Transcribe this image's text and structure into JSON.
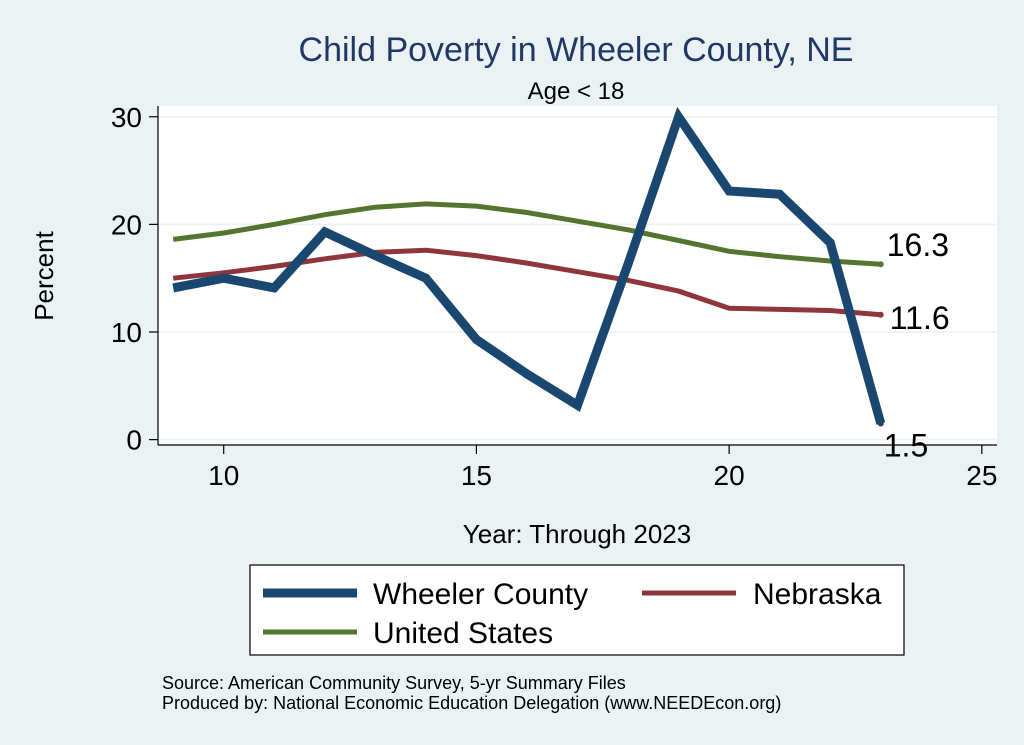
{
  "chart_data": {
    "type": "line",
    "title": "Child Poverty in Wheeler County, NE",
    "subtitle": "Age < 18",
    "xlabel": "Year: Through 2023",
    "ylabel": "Percent",
    "xlim": [
      8.7,
      25.3
    ],
    "ylim": [
      -0.5,
      31
    ],
    "xticks": [
      "10",
      "15",
      "20",
      "25"
    ],
    "yticks": [
      "0",
      "10",
      "20",
      "30"
    ],
    "grid": true,
    "series": [
      {
        "name": "Wheeler County",
        "color": "#1a476f",
        "x": [
          9,
          10,
          11,
          12,
          13,
          14,
          15,
          16,
          17,
          18,
          19,
          20,
          21,
          22,
          23
        ],
        "values": [
          14.1,
          15.0,
          14.1,
          19.3,
          17.1,
          15.0,
          9.3,
          6.1,
          3.2,
          16.3,
          30.0,
          23.1,
          22.8,
          18.3,
          1.5
        ]
      },
      {
        "name": "Nebraska",
        "color": "#90353b",
        "x": [
          9,
          10,
          11,
          12,
          13,
          14,
          15,
          16,
          17,
          18,
          19,
          20,
          21,
          22,
          23
        ],
        "values": [
          15.0,
          15.5,
          16.1,
          16.8,
          17.4,
          17.6,
          17.1,
          16.4,
          15.6,
          14.8,
          13.8,
          12.2,
          12.1,
          12.0,
          11.6
        ]
      },
      {
        "name": "United States",
        "color": "#55752f",
        "x": [
          9,
          10,
          11,
          12,
          13,
          14,
          15,
          16,
          17,
          18,
          19,
          20,
          21,
          22,
          23
        ],
        "values": [
          18.6,
          19.2,
          20.0,
          20.9,
          21.6,
          21.9,
          21.7,
          21.1,
          20.3,
          19.5,
          18.5,
          17.5,
          17.0,
          16.6,
          16.3
        ]
      }
    ],
    "end_labels": [
      "1.5",
      "11.6",
      "16.3"
    ],
    "legend_position": "bottom",
    "notes": [
      "Source: American Community Survey, 5-yr Summary Files",
      "Produced by: National Economic Education Delegation (www.NEEDEcon.org)"
    ]
  }
}
